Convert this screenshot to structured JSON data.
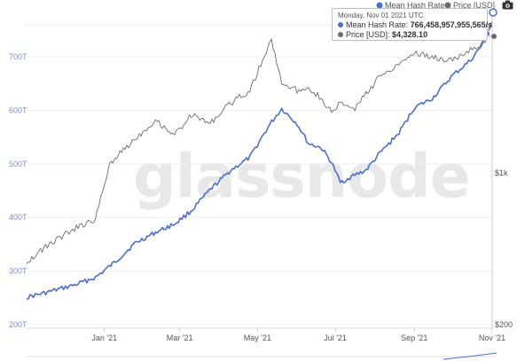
{
  "watermark": "glassnode",
  "legend": {
    "series1": "Mean Hash Rate",
    "series2": "Price [USD]"
  },
  "tooltip": {
    "date": "Monday, Nov 01 2021 UTC",
    "hash_label": "Mean Hash Rate:",
    "hash_value": "766,458,957,955,565/s",
    "price_label": "Price [USD]:",
    "price_value": "$4,328.10"
  },
  "colors": {
    "hash": "#4a6fd4",
    "price": "#6b6b6b",
    "grid": "#eeeeee",
    "axis_left": "#7b8dd0"
  },
  "chart_data": {
    "type": "line",
    "title": "",
    "xlabel": "",
    "ylabel_left": "",
    "ylabel_right": "",
    "x_ticks": [
      "Jan '21",
      "Mar '21",
      "May '21",
      "Jul '21",
      "Sep '21",
      "Nov '21"
    ],
    "y_left_ticks": [
      "200T",
      "300T",
      "400T",
      "500T",
      "600T",
      "700T"
    ],
    "y_right_ticks": [
      "$200",
      "$1k"
    ],
    "y_left_range": [
      200,
      780
    ],
    "y_right_scale": "log",
    "series": [
      {
        "name": "Mean Hash Rate",
        "axis": "left",
        "unit": "T hashes/s",
        "x": [
          "2020-11-01",
          "2020-11-20",
          "2020-12-10",
          "2020-12-25",
          "2021-01-10",
          "2021-01-25",
          "2021-02-10",
          "2021-02-25",
          "2021-03-10",
          "2021-03-25",
          "2021-04-10",
          "2021-04-25",
          "2021-05-05",
          "2021-05-12",
          "2021-05-20",
          "2021-06-01",
          "2021-06-10",
          "2021-06-20",
          "2021-06-28",
          "2021-07-05",
          "2021-07-15",
          "2021-07-25",
          "2021-08-05",
          "2021-08-20",
          "2021-09-01",
          "2021-09-15",
          "2021-10-01",
          "2021-10-15",
          "2021-10-25",
          "2021-11-01"
        ],
        "values": [
          251,
          262,
          275,
          288,
          318,
          352,
          372,
          388,
          412,
          452,
          488,
          512,
          552,
          578,
          603,
          575,
          538,
          530,
          503,
          465,
          478,
          488,
          520,
          558,
          605,
          622,
          665,
          693,
          725,
          766
        ]
      },
      {
        "name": "Price [USD]",
        "axis": "right",
        "unit": "USD",
        "x": [
          "2020-11-01",
          "2020-11-20",
          "2020-12-10",
          "2020-12-25",
          "2021-01-05",
          "2021-01-20",
          "2021-02-10",
          "2021-02-25",
          "2021-03-10",
          "2021-03-25",
          "2021-04-10",
          "2021-04-25",
          "2021-05-05",
          "2021-05-12",
          "2021-05-20",
          "2021-06-01",
          "2021-06-10",
          "2021-06-20",
          "2021-06-28",
          "2021-07-05",
          "2021-07-15",
          "2021-07-25",
          "2021-08-05",
          "2021-08-20",
          "2021-09-01",
          "2021-09-15",
          "2021-10-01",
          "2021-10-15",
          "2021-10-25",
          "2021-11-01"
        ],
        "values": [
          390,
          475,
          560,
          610,
          1100,
          1350,
          1750,
          1500,
          1850,
          1700,
          2100,
          2400,
          3300,
          4100,
          2600,
          2400,
          2500,
          2200,
          1900,
          2100,
          1950,
          2300,
          2800,
          3200,
          3600,
          3400,
          3300,
          3700,
          4000,
          4328
        ]
      }
    ]
  }
}
